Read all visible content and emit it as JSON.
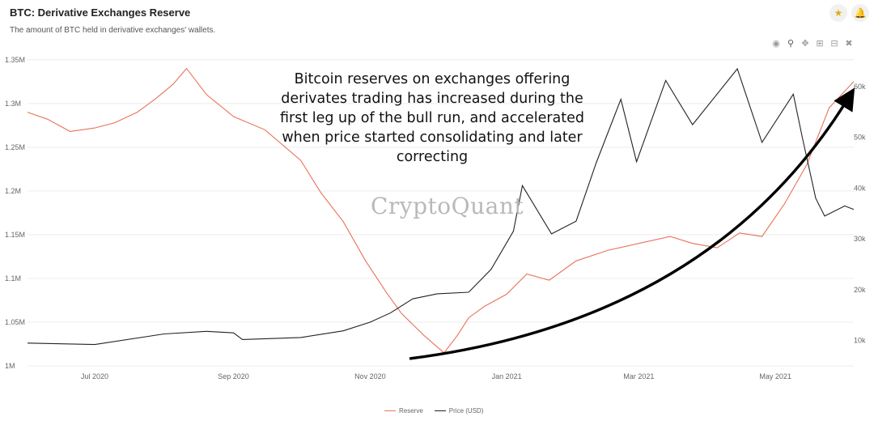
{
  "header": {
    "title": "BTC: Derivative Exchanges Reserve",
    "subtitle": "The amount of BTC held in derivative exchanges' wallets."
  },
  "icons": {
    "star": "star-icon",
    "bell": "bell-icon",
    "toolbar": [
      "camera-icon",
      "zoom-icon",
      "pan-icon",
      "zoom-in-icon",
      "zoom-out-icon",
      "reset-axes-icon"
    ]
  },
  "annotation": "Bitcoin reserves on exchanges offering derivates trading has increased during the first leg up of the bull run, and accelerated when price started consolidating and later correcting",
  "watermark": "CryptoQuant",
  "colors": {
    "reserve": "#e8735a",
    "price": "#222222",
    "arrow": "#000000",
    "grid": "#ececec",
    "star": "#e6a817"
  },
  "chart_data": {
    "type": "line",
    "title": "BTC: Derivative Exchanges Reserve",
    "xlabel": "",
    "ylabel": "",
    "x_range": [
      "2020-06-01",
      "2021-06-05"
    ],
    "x_ticks": [
      "Jul 2020",
      "Sep 2020",
      "Nov 2020",
      "Jan 2021",
      "Mar 2021",
      "May 2021"
    ],
    "y_left": {
      "range": [
        1000000,
        1360000
      ],
      "ticks": [
        1000000,
        1050000,
        1100000,
        1150000,
        1200000,
        1250000,
        1300000,
        1350000
      ],
      "tick_labels": [
        "1M",
        "1.05M",
        "1.1M",
        "1.15M",
        "1.2M",
        "1.25M",
        "1.3M",
        "1.35M"
      ]
    },
    "y_right": {
      "range": [
        5000,
        67000
      ],
      "ticks": [
        10000,
        20000,
        30000,
        40000,
        50000,
        60000
      ],
      "tick_labels": [
        "10k",
        "20k",
        "30k",
        "40k",
        "50k",
        "60k"
      ]
    },
    "legend": "bottom-center",
    "series": [
      {
        "name": "Reserve",
        "axis": "left",
        "points": [
          [
            "2020-06-01",
            1290000
          ],
          [
            "2020-06-10",
            1282000
          ],
          [
            "2020-06-20",
            1268000
          ],
          [
            "2020-07-01",
            1272000
          ],
          [
            "2020-07-10",
            1278000
          ],
          [
            "2020-07-20",
            1290000
          ],
          [
            "2020-07-28",
            1305000
          ],
          [
            "2020-08-05",
            1322000
          ],
          [
            "2020-08-11",
            1340000
          ],
          [
            "2020-08-20",
            1310000
          ],
          [
            "2020-09-01",
            1285000
          ],
          [
            "2020-09-15",
            1270000
          ],
          [
            "2020-10-01",
            1235000
          ],
          [
            "2020-10-10",
            1198000
          ],
          [
            "2020-10-20",
            1165000
          ],
          [
            "2020-10-30",
            1120000
          ],
          [
            "2020-11-08",
            1085000
          ],
          [
            "2020-11-15",
            1060000
          ],
          [
            "2020-11-25",
            1035000
          ],
          [
            "2020-12-04",
            1015000
          ],
          [
            "2020-12-10",
            1035000
          ],
          [
            "2020-12-15",
            1055000
          ],
          [
            "2020-12-22",
            1068000
          ],
          [
            "2021-01-01",
            1082000
          ],
          [
            "2021-01-10",
            1105000
          ],
          [
            "2021-01-20",
            1098000
          ],
          [
            "2021-02-01",
            1120000
          ],
          [
            "2021-02-15",
            1132000
          ],
          [
            "2021-03-01",
            1140000
          ],
          [
            "2021-03-15",
            1148000
          ],
          [
            "2021-03-25",
            1140000
          ],
          [
            "2021-04-05",
            1135000
          ],
          [
            "2021-04-15",
            1152000
          ],
          [
            "2021-04-25",
            1148000
          ],
          [
            "2021-05-05",
            1185000
          ],
          [
            "2021-05-15",
            1230000
          ],
          [
            "2021-05-25",
            1295000
          ],
          [
            "2021-06-05",
            1325000
          ]
        ]
      },
      {
        "name": "Price (USD)",
        "axis": "right",
        "points": [
          [
            "2020-06-01",
            9500
          ],
          [
            "2020-07-01",
            9200
          ],
          [
            "2020-08-01",
            11300
          ],
          [
            "2020-08-20",
            11800
          ],
          [
            "2020-09-01",
            11500
          ],
          [
            "2020-09-05",
            10200
          ],
          [
            "2020-10-01",
            10600
          ],
          [
            "2020-10-20",
            11900
          ],
          [
            "2020-11-01",
            13600
          ],
          [
            "2020-11-10",
            15400
          ],
          [
            "2020-11-20",
            18200
          ],
          [
            "2020-12-01",
            19200
          ],
          [
            "2020-12-15",
            19500
          ],
          [
            "2020-12-25",
            24000
          ],
          [
            "2021-01-04",
            31500
          ],
          [
            "2021-01-08",
            40500
          ],
          [
            "2021-01-21",
            31000
          ],
          [
            "2021-02-01",
            33500
          ],
          [
            "2021-02-10",
            45000
          ],
          [
            "2021-02-21",
            57500
          ],
          [
            "2021-02-28",
            45200
          ],
          [
            "2021-03-13",
            61200
          ],
          [
            "2021-03-25",
            52500
          ],
          [
            "2021-04-14",
            63500
          ],
          [
            "2021-04-25",
            49000
          ],
          [
            "2021-05-09",
            58500
          ],
          [
            "2021-05-13",
            50000
          ],
          [
            "2021-05-19",
            38000
          ],
          [
            "2021-05-23",
            34500
          ],
          [
            "2021-06-01",
            36500
          ],
          [
            "2021-06-05",
            35800
          ]
        ]
      }
    ]
  },
  "legend": {
    "reserve": "Reserve",
    "price": "Price (USD)"
  }
}
